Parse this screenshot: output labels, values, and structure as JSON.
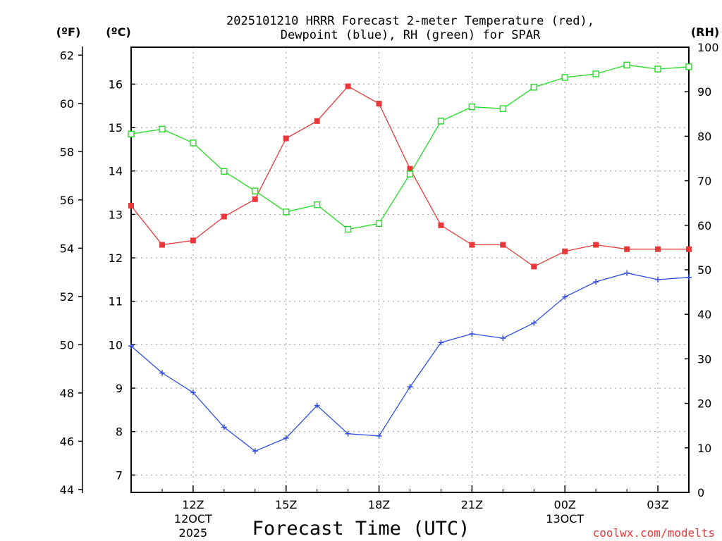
{
  "chart_data": {
    "type": "line",
    "title_line1": "2025101210 HRRR Forecast 2-meter Temperature (red),",
    "title_line2": "Dewpoint (blue), RH (green) for SPAR",
    "xlabel": "Forecast Time (UTC)",
    "credit": "coolwx.com/modelts",
    "units": {
      "fahrenheit": "(ºF)",
      "celsius": "(ºC)",
      "rh": "(RH)"
    },
    "x_hours": [
      10,
      11,
      12,
      13,
      14,
      15,
      16,
      17,
      18,
      19,
      20,
      21,
      22,
      23,
      24,
      25,
      26,
      27,
      28
    ],
    "x_range": [
      10,
      28
    ],
    "x_ticks": [
      {
        "hour": 12,
        "label": "12Z",
        "sub1": "12OCT",
        "sub2": "2025"
      },
      {
        "hour": 15,
        "label": "15Z",
        "sub1": "",
        "sub2": ""
      },
      {
        "hour": 18,
        "label": "18Z",
        "sub1": "",
        "sub2": ""
      },
      {
        "hour": 21,
        "label": "21Z",
        "sub1": "",
        "sub2": ""
      },
      {
        "hour": 24,
        "label": "00Z",
        "sub1": "13OCT",
        "sub2": ""
      },
      {
        "hour": 27,
        "label": "03Z",
        "sub1": "",
        "sub2": ""
      }
    ],
    "celsius_range": [
      6.6,
      16.85
    ],
    "celsius_ticks": [
      7,
      8,
      9,
      10,
      11,
      12,
      13,
      14,
      15,
      16
    ],
    "fahrenheit_ticks": [
      44,
      46,
      48,
      50,
      52,
      54,
      56,
      58,
      60,
      62
    ],
    "rh_range": [
      0,
      100
    ],
    "rh_ticks": [
      0,
      10,
      20,
      30,
      40,
      50,
      60,
      70,
      80,
      90,
      100
    ],
    "series": [
      {
        "name": "2-meter Temperature",
        "axis": "celsius",
        "color": "#e8383a",
        "marker": "filled-square",
        "values": [
          13.2,
          12.3,
          12.4,
          12.95,
          13.35,
          14.75,
          15.15,
          15.95,
          15.55,
          14.05,
          12.75,
          12.3,
          12.3,
          11.8,
          12.15,
          12.3,
          12.2,
          12.2,
          12.2
        ]
      },
      {
        "name": "Dewpoint",
        "axis": "celsius",
        "color": "#2f4ce8",
        "marker": "plus",
        "values": [
          9.97,
          9.35,
          8.9,
          8.1,
          7.55,
          7.85,
          8.6,
          7.95,
          7.9,
          9.03,
          10.05,
          10.25,
          10.15,
          10.5,
          11.1,
          11.45,
          11.65,
          11.5,
          11.55
        ]
      },
      {
        "name": "RH",
        "axis": "rh",
        "color": "#22dd22",
        "marker": "open-square",
        "values": [
          80.5,
          81.6,
          78.5,
          72.1,
          67.7,
          63.0,
          64.6,
          59.1,
          60.4,
          71.5,
          83.4,
          86.6,
          86.2,
          91.0,
          93.2,
          94.0,
          96.0,
          95.1,
          95.6
        ]
      }
    ]
  }
}
